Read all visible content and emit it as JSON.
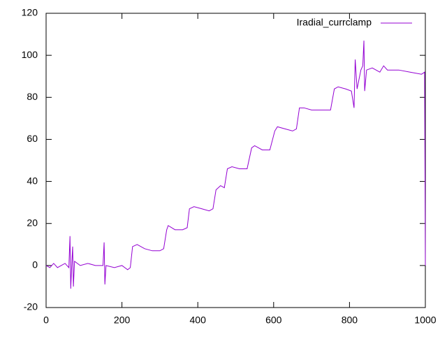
{
  "chart_data": {
    "type": "line",
    "x": [
      0,
      10,
      20,
      30,
      40,
      50,
      60,
      63,
      65,
      68,
      70,
      72,
      75,
      90,
      110,
      130,
      150,
      153,
      155,
      158,
      180,
      200,
      215,
      222,
      228,
      240,
      260,
      280,
      300,
      310,
      318,
      322,
      340,
      360,
      372,
      378,
      390,
      410,
      430,
      440,
      448,
      460,
      470,
      478,
      490,
      510,
      530,
      542,
      550,
      570,
      590,
      603,
      610,
      630,
      650,
      660,
      668,
      680,
      700,
      730,
      750,
      760,
      770,
      790,
      805,
      812,
      815,
      820,
      830,
      835,
      838,
      840,
      845,
      860,
      880,
      890,
      900,
      930,
      960,
      990,
      998,
      1000
    ],
    "series": [
      {
        "name": "Iradial_currclamp",
        "color": "#9400d3",
        "values": [
          0,
          -1,
          1,
          -1,
          0,
          1,
          -1,
          14,
          -11,
          2,
          9,
          -10,
          2,
          0,
          1,
          0,
          0,
          11,
          -9,
          0,
          -1,
          0,
          -2,
          -1,
          9,
          10,
          8,
          7,
          7,
          8,
          17,
          19,
          17,
          17,
          18,
          27,
          28,
          27,
          26,
          27,
          36,
          38,
          37,
          46,
          47,
          46,
          46,
          56,
          57,
          55,
          55,
          64,
          66,
          65,
          64,
          65,
          75,
          75,
          74,
          74,
          74,
          84,
          85,
          84,
          83,
          75,
          98,
          84,
          93,
          95,
          107,
          83,
          93,
          94,
          92,
          95,
          93,
          93,
          92,
          91,
          92,
          0
        ]
      }
    ],
    "xlim": [
      0,
      1000
    ],
    "xticks": [
      0,
      200,
      400,
      600,
      800,
      1000
    ],
    "ylim": [
      -20,
      120
    ],
    "yticks": [
      -20,
      0,
      20,
      40,
      60,
      80,
      100,
      120
    ],
    "legend": "top-right"
  }
}
